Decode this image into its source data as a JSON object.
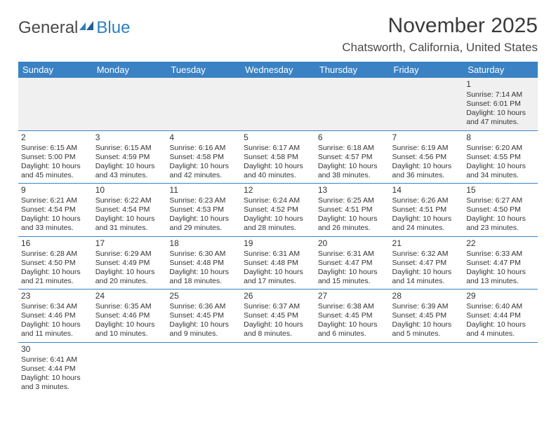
{
  "logo": {
    "part1": "General",
    "part2": "Blue"
  },
  "title": "November 2025",
  "location": "Chatsworth, California, United States",
  "colors": {
    "header_bg": "#3a82c4",
    "header_fg": "#ffffff",
    "rule": "#3a82c4",
    "logo_blue": "#2f7fbf"
  },
  "day_headers": [
    "Sunday",
    "Monday",
    "Tuesday",
    "Wednesday",
    "Thursday",
    "Friday",
    "Saturday"
  ],
  "weeks": [
    [
      null,
      null,
      null,
      null,
      null,
      null,
      {
        "n": "1",
        "sr": "Sunrise: 7:14 AM",
        "ss": "Sunset: 6:01 PM",
        "dl": "Daylight: 10 hours and 47 minutes."
      }
    ],
    [
      {
        "n": "2",
        "sr": "Sunrise: 6:15 AM",
        "ss": "Sunset: 5:00 PM",
        "dl": "Daylight: 10 hours and 45 minutes."
      },
      {
        "n": "3",
        "sr": "Sunrise: 6:15 AM",
        "ss": "Sunset: 4:59 PM",
        "dl": "Daylight: 10 hours and 43 minutes."
      },
      {
        "n": "4",
        "sr": "Sunrise: 6:16 AM",
        "ss": "Sunset: 4:58 PM",
        "dl": "Daylight: 10 hours and 42 minutes."
      },
      {
        "n": "5",
        "sr": "Sunrise: 6:17 AM",
        "ss": "Sunset: 4:58 PM",
        "dl": "Daylight: 10 hours and 40 minutes."
      },
      {
        "n": "6",
        "sr": "Sunrise: 6:18 AM",
        "ss": "Sunset: 4:57 PM",
        "dl": "Daylight: 10 hours and 38 minutes."
      },
      {
        "n": "7",
        "sr": "Sunrise: 6:19 AM",
        "ss": "Sunset: 4:56 PM",
        "dl": "Daylight: 10 hours and 36 minutes."
      },
      {
        "n": "8",
        "sr": "Sunrise: 6:20 AM",
        "ss": "Sunset: 4:55 PM",
        "dl": "Daylight: 10 hours and 34 minutes."
      }
    ],
    [
      {
        "n": "9",
        "sr": "Sunrise: 6:21 AM",
        "ss": "Sunset: 4:54 PM",
        "dl": "Daylight: 10 hours and 33 minutes."
      },
      {
        "n": "10",
        "sr": "Sunrise: 6:22 AM",
        "ss": "Sunset: 4:54 PM",
        "dl": "Daylight: 10 hours and 31 minutes."
      },
      {
        "n": "11",
        "sr": "Sunrise: 6:23 AM",
        "ss": "Sunset: 4:53 PM",
        "dl": "Daylight: 10 hours and 29 minutes."
      },
      {
        "n": "12",
        "sr": "Sunrise: 6:24 AM",
        "ss": "Sunset: 4:52 PM",
        "dl": "Daylight: 10 hours and 28 minutes."
      },
      {
        "n": "13",
        "sr": "Sunrise: 6:25 AM",
        "ss": "Sunset: 4:51 PM",
        "dl": "Daylight: 10 hours and 26 minutes."
      },
      {
        "n": "14",
        "sr": "Sunrise: 6:26 AM",
        "ss": "Sunset: 4:51 PM",
        "dl": "Daylight: 10 hours and 24 minutes."
      },
      {
        "n": "15",
        "sr": "Sunrise: 6:27 AM",
        "ss": "Sunset: 4:50 PM",
        "dl": "Daylight: 10 hours and 23 minutes."
      }
    ],
    [
      {
        "n": "16",
        "sr": "Sunrise: 6:28 AM",
        "ss": "Sunset: 4:50 PM",
        "dl": "Daylight: 10 hours and 21 minutes."
      },
      {
        "n": "17",
        "sr": "Sunrise: 6:29 AM",
        "ss": "Sunset: 4:49 PM",
        "dl": "Daylight: 10 hours and 20 minutes."
      },
      {
        "n": "18",
        "sr": "Sunrise: 6:30 AM",
        "ss": "Sunset: 4:48 PM",
        "dl": "Daylight: 10 hours and 18 minutes."
      },
      {
        "n": "19",
        "sr": "Sunrise: 6:31 AM",
        "ss": "Sunset: 4:48 PM",
        "dl": "Daylight: 10 hours and 17 minutes."
      },
      {
        "n": "20",
        "sr": "Sunrise: 6:31 AM",
        "ss": "Sunset: 4:47 PM",
        "dl": "Daylight: 10 hours and 15 minutes."
      },
      {
        "n": "21",
        "sr": "Sunrise: 6:32 AM",
        "ss": "Sunset: 4:47 PM",
        "dl": "Daylight: 10 hours and 14 minutes."
      },
      {
        "n": "22",
        "sr": "Sunrise: 6:33 AM",
        "ss": "Sunset: 4:47 PM",
        "dl": "Daylight: 10 hours and 13 minutes."
      }
    ],
    [
      {
        "n": "23",
        "sr": "Sunrise: 6:34 AM",
        "ss": "Sunset: 4:46 PM",
        "dl": "Daylight: 10 hours and 11 minutes."
      },
      {
        "n": "24",
        "sr": "Sunrise: 6:35 AM",
        "ss": "Sunset: 4:46 PM",
        "dl": "Daylight: 10 hours and 10 minutes."
      },
      {
        "n": "25",
        "sr": "Sunrise: 6:36 AM",
        "ss": "Sunset: 4:45 PM",
        "dl": "Daylight: 10 hours and 9 minutes."
      },
      {
        "n": "26",
        "sr": "Sunrise: 6:37 AM",
        "ss": "Sunset: 4:45 PM",
        "dl": "Daylight: 10 hours and 8 minutes."
      },
      {
        "n": "27",
        "sr": "Sunrise: 6:38 AM",
        "ss": "Sunset: 4:45 PM",
        "dl": "Daylight: 10 hours and 6 minutes."
      },
      {
        "n": "28",
        "sr": "Sunrise: 6:39 AM",
        "ss": "Sunset: 4:45 PM",
        "dl": "Daylight: 10 hours and 5 minutes."
      },
      {
        "n": "29",
        "sr": "Sunrise: 6:40 AM",
        "ss": "Sunset: 4:44 PM",
        "dl": "Daylight: 10 hours and 4 minutes."
      }
    ],
    [
      {
        "n": "30",
        "sr": "Sunrise: 6:41 AM",
        "ss": "Sunset: 4:44 PM",
        "dl": "Daylight: 10 hours and 3 minutes."
      },
      null,
      null,
      null,
      null,
      null,
      null
    ]
  ]
}
